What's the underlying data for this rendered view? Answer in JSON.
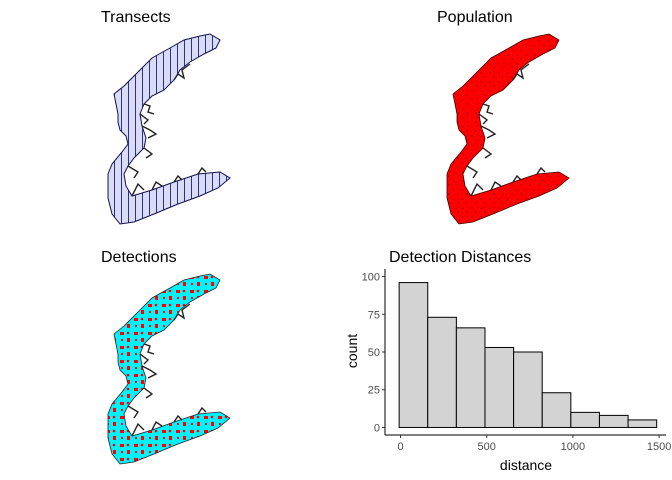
{
  "panels": {
    "transects": {
      "title": "Transects",
      "fill": "#d9dcf6",
      "stroke": "#0c0c5e",
      "hatch": "#1a1a8c"
    },
    "population": {
      "title": "Population",
      "fill": "#ff0000",
      "stroke": "#222222"
    },
    "detections": {
      "title": "Detections",
      "fill": "#ff0000",
      "overlay": "#00f2ff",
      "stroke": "#222222"
    }
  },
  "chart_data": {
    "type": "bar",
    "title": "Detection Distances",
    "xlabel": "distance",
    "ylabel": "count",
    "bin_width": 166,
    "bin_edges": [
      -8,
      158,
      324,
      490,
      656,
      822,
      988,
      1154,
      1320,
      1486
    ],
    "values": [
      96,
      73,
      66,
      53,
      50,
      23,
      10,
      8,
      5
    ],
    "xlim": [
      -90,
      1540
    ],
    "ylim": [
      -5,
      105
    ],
    "xticks": [
      0,
      500,
      1000,
      1500
    ],
    "yticks": [
      0,
      25,
      50,
      75,
      100
    ],
    "bar_fill": "#d3d3d3",
    "bar_stroke": "#000000",
    "grid": false
  }
}
